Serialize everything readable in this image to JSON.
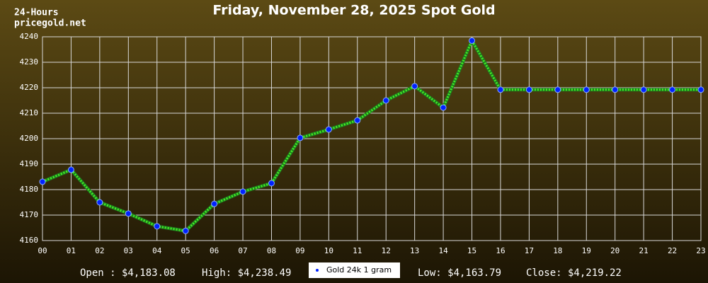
{
  "header": {
    "label": "24-Hours",
    "site": "pricegold.net"
  },
  "chart_data": {
    "type": "line",
    "title": "Friday, November 28, 2025 Spot Gold",
    "categories": [
      "00",
      "01",
      "02",
      "03",
      "04",
      "05",
      "06",
      "07",
      "08",
      "09",
      "10",
      "11",
      "12",
      "13",
      "14",
      "15",
      "16",
      "17",
      "18",
      "19",
      "20",
      "21",
      "22",
      "23"
    ],
    "series": [
      {
        "name": "Gold 24k 1 gram",
        "color": "#44ee22",
        "marker_color": "#0022ff",
        "values": [
          4183.08,
          4187.8,
          4175,
          4170.6,
          4165.6,
          4163.79,
          4174.4,
          4179.2,
          4182.5,
          4200.3,
          4203.6,
          4207.2,
          4215,
          4220.6,
          4212.2,
          4238.49,
          4219.22,
          4219.22,
          4219.22,
          4219.22,
          4219.22,
          4219.22,
          4219.22,
          4219.22
        ]
      }
    ],
    "ylim": [
      4160,
      4240
    ],
    "yticks": [
      4160,
      4170,
      4180,
      4190,
      4200,
      4210,
      4220,
      4230,
      4240
    ],
    "grid": true
  },
  "footer": {
    "open": "Open : $4,183.08",
    "high": "High: $4,238.49",
    "low": "Low: $4,163.79",
    "close": "Close: $4,219.22"
  }
}
